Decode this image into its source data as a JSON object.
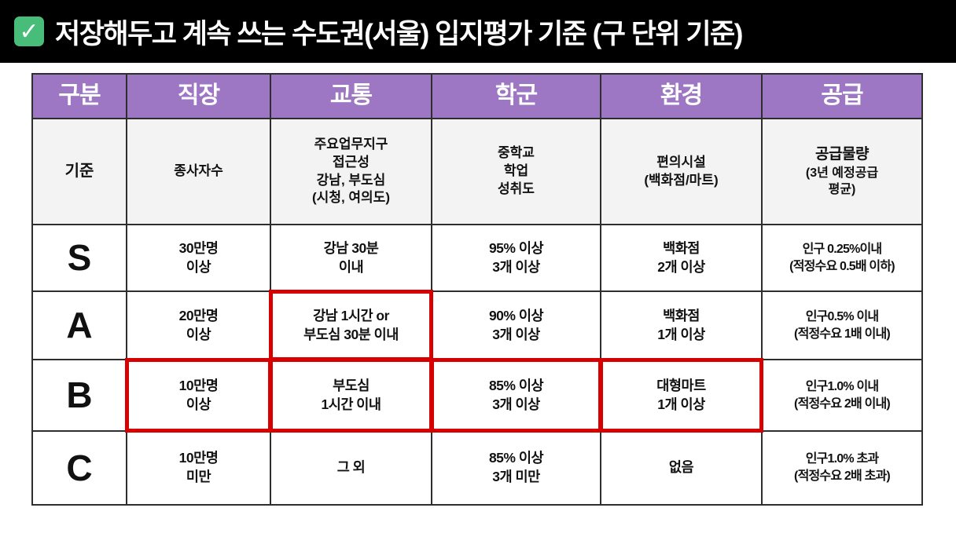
{
  "title": {
    "icon": "✓",
    "text": "저장해두고 계속 쓰는 수도권(서울) 입지평가 기준 (구 단위 기준)"
  },
  "colors": {
    "title_bar_bg": "#000000",
    "check_icon_green": "#47bd79",
    "header_purple": "#9d77c4",
    "criteria_row_gray": "#f3f3f3",
    "grid_border": "#2e2e2e",
    "highlight_red": "#d60000"
  },
  "table": {
    "headers": [
      "구분",
      "직장",
      "교통",
      "학군",
      "환경",
      "공급"
    ],
    "criteria_row": {
      "label": "기준",
      "job": "종사자수",
      "transport": "주요업무지구\n접근성\n강남, 부도심\n(시청, 여의도)",
      "school": "중학교\n학업\n성취도",
      "environment": "편의시설\n(백화점/마트)",
      "supply_title": "공급물량",
      "supply_sub": "(3년 예정공급\n평균)"
    },
    "grade_rows": [
      {
        "grade": "S",
        "job": "30만명\n이상",
        "transport": "강남 30분\n이내",
        "school": "95% 이상\n3개 이상",
        "environment": "백화점\n2개 이상",
        "supply": "인구 0.25%이내\n(적정수요 0.5배 이하)"
      },
      {
        "grade": "A",
        "job": "20만명\n이상",
        "transport": "강남 1시간 or\n부도심 30분 이내",
        "school": "90% 이상\n3개 이상",
        "environment": "백화점\n1개 이상",
        "supply": "인구0.5% 이내\n(적정수요 1배 이내)"
      },
      {
        "grade": "B",
        "job": "10만명\n이상",
        "transport": "부도심\n1시간 이내",
        "school": "85% 이상\n3개 이상",
        "environment": "대형마트\n1개 이상",
        "supply": "인구1.0% 이내\n(적정수요 2배 이내)"
      },
      {
        "grade": "C",
        "job": "10만명\n미만",
        "transport": "그 외",
        "school": "85% 이상\n3개 미만",
        "environment": "없음",
        "supply": "인구1.0% 초과\n(적정수요 2배 초과)"
      }
    ],
    "highlighted_cells": [
      "A-transport",
      "B-job",
      "B-transport",
      "B-school",
      "B-environment"
    ]
  }
}
